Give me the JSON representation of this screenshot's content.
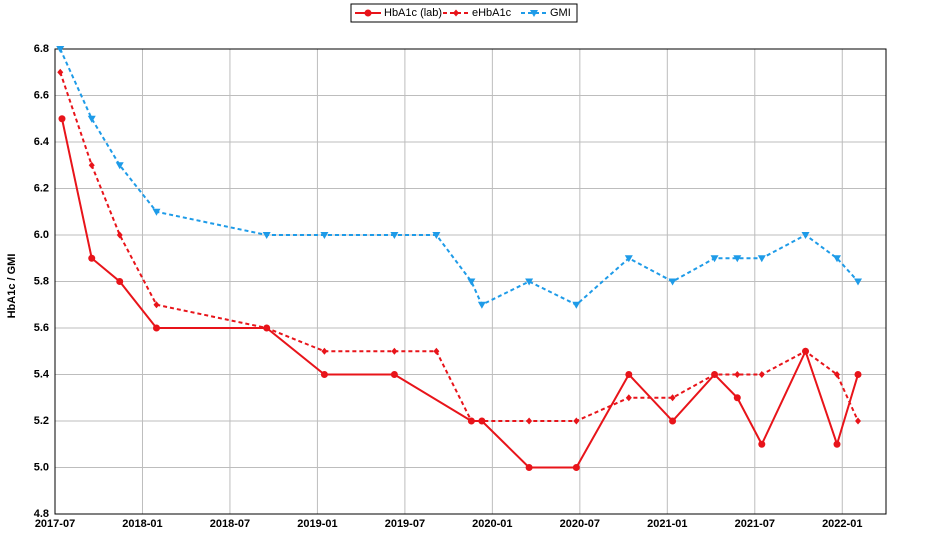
{
  "chart_data": {
    "type": "line",
    "ylabel": "HbA1c / GMI",
    "xlim": [
      2017.5,
      2022.25
    ],
    "xticks": [
      {
        "value": 2017.5,
        "label": "2017-07"
      },
      {
        "value": 2018.0,
        "label": "2018-01"
      },
      {
        "value": 2018.5,
        "label": "2018-07"
      },
      {
        "value": 2019.0,
        "label": "2019-01"
      },
      {
        "value": 2019.5,
        "label": "2019-07"
      },
      {
        "value": 2020.0,
        "label": "2020-01"
      },
      {
        "value": 2020.5,
        "label": "2020-07"
      },
      {
        "value": 2021.0,
        "label": "2021-01"
      },
      {
        "value": 2021.5,
        "label": "2021-07"
      },
      {
        "value": 2022.0,
        "label": "2022-01"
      }
    ],
    "ylim": [
      4.8,
      6.8
    ],
    "yticks": [
      4.8,
      {
        "value": 5,
        "label": "5.0"
      },
      5.2,
      5.4,
      5.6,
      5.8,
      {
        "value": 6,
        "label": "6.0"
      },
      6.2,
      6.4,
      6.6,
      6.8
    ],
    "grid": true,
    "legend": "top",
    "series": [
      {
        "name": "HbA1c (lab)",
        "color": "#e8141a",
        "dash": false,
        "marker": "circle",
        "x": [
          2017.54,
          2017.71,
          2017.87,
          2018.08,
          2018.71,
          2019.04,
          2019.44,
          2019.88,
          2019.94,
          2020.21,
          2020.48,
          2020.78,
          2021.03,
          2021.27,
          2021.4,
          2021.54,
          2021.79,
          2021.97,
          2022.09
        ],
        "values": [
          6.5,
          5.9,
          5.8,
          5.6,
          5.6,
          5.4,
          5.4,
          5.2,
          5.2,
          5.0,
          5.0,
          5.4,
          5.2,
          5.4,
          5.3,
          5.1,
          5.5,
          5.1,
          5.4
        ]
      },
      {
        "name": "eHbA1c",
        "color": "#e8141a",
        "dash": true,
        "marker": "diamond",
        "x": [
          2017.53,
          2017.71,
          2017.87,
          2018.08,
          2018.71,
          2019.04,
          2019.44,
          2019.68,
          2019.88,
          2019.94,
          2020.21,
          2020.48,
          2020.78,
          2021.03,
          2021.27,
          2021.4,
          2021.54,
          2021.79,
          2021.97,
          2022.09
        ],
        "values": [
          6.7,
          6.3,
          6.0,
          5.7,
          5.6,
          5.5,
          5.5,
          5.5,
          5.2,
          5.2,
          5.2,
          5.2,
          5.3,
          5.3,
          5.4,
          5.4,
          5.4,
          5.5,
          5.4,
          5.2
        ]
      },
      {
        "name": "GMI",
        "color": "#1e9be8",
        "dash": true,
        "marker": "triangle",
        "x": [
          2017.53,
          2017.71,
          2017.87,
          2018.08,
          2018.71,
          2019.04,
          2019.44,
          2019.68,
          2019.88,
          2019.94,
          2020.21,
          2020.48,
          2020.78,
          2021.03,
          2021.27,
          2021.4,
          2021.54,
          2021.79,
          2021.97,
          2022.09
        ],
        "values": [
          6.8,
          6.5,
          6.3,
          6.1,
          6.0,
          6.0,
          6.0,
          6.0,
          5.8,
          5.7,
          5.8,
          5.7,
          5.9,
          5.8,
          5.9,
          5.9,
          5.9,
          6.0,
          5.9,
          5.8
        ]
      }
    ]
  }
}
